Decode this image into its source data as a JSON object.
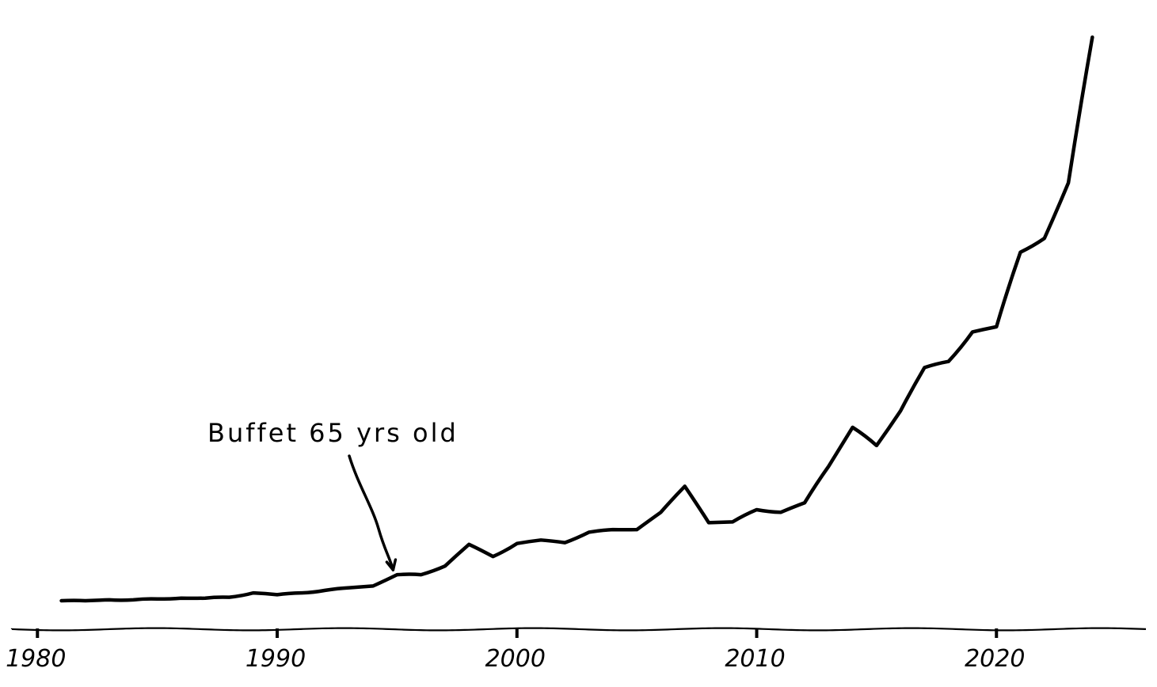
{
  "chart_data": {
    "type": "line",
    "title": "",
    "xlabel": "",
    "ylabel": "",
    "x_ticks": [
      1980,
      1990,
      2000,
      2010,
      2020
    ],
    "x_tick_labels": [
      "1980",
      "1990",
      "2000",
      "2010",
      "2020"
    ],
    "xlim": [
      1979,
      2026.3
    ],
    "ylim": [
      -1.5,
      25
    ],
    "y_axis_visible": false,
    "grid": false,
    "legend": "none",
    "line_color": "#000000",
    "series": [
      {
        "x": [
          1981,
          1982,
          1983,
          1984,
          1985,
          1986,
          1987,
          1988,
          1989,
          1990,
          1991,
          1992,
          1993,
          1994,
          1995,
          1996,
          1997,
          1998,
          1999,
          2000,
          2001,
          2002,
          2003,
          2004,
          2005,
          2006,
          2007,
          2008,
          2009,
          2010,
          2011,
          2012,
          2013,
          2014,
          2015,
          2016,
          2017,
          2018,
          2019,
          2020,
          2021,
          2022,
          2023,
          2024
        ],
        "values": [
          0,
          0,
          0.05,
          0.05,
          0.1,
          0.15,
          0.15,
          0.2,
          0.45,
          0.35,
          0.45,
          0.6,
          0.75,
          0.85,
          1.5,
          1.5,
          2.0,
          3.25,
          2.55,
          3.3,
          3.5,
          3.35,
          3.95,
          4.1,
          4.1,
          5.1,
          6.6,
          4.5,
          4.55,
          5.25,
          5.1,
          5.65,
          7.75,
          10.0,
          8.95,
          10.95,
          13.45,
          13.8,
          15.5,
          15.8,
          20.1,
          20.9,
          24.1,
          32.5
        ]
      }
    ],
    "annotations": [
      {
        "text": "Buffet 65 yrs old",
        "x": 1995,
        "y": 1.5
      }
    ]
  }
}
